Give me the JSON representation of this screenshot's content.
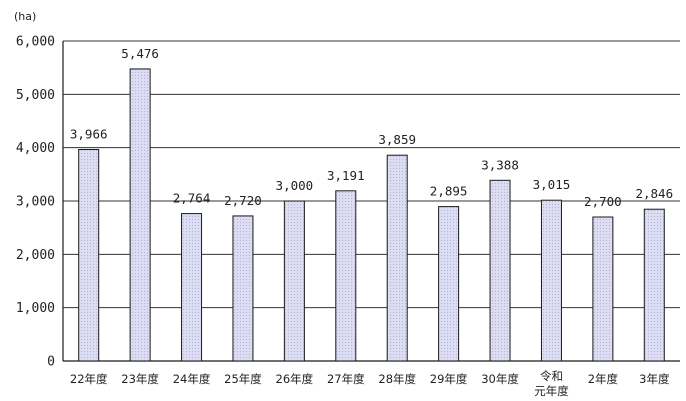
{
  "chart_data": {
    "type": "bar",
    "unit": "(ha)",
    "categories": [
      [
        "22年度"
      ],
      [
        "23年度"
      ],
      [
        "24年度"
      ],
      [
        "25年度"
      ],
      [
        "26年度"
      ],
      [
        "27年度"
      ],
      [
        "28年度"
      ],
      [
        "29年度"
      ],
      [
        "30年度"
      ],
      [
        "令和",
        "元年度"
      ],
      [
        "2年度"
      ],
      [
        "3年度"
      ]
    ],
    "values": [
      3966,
      5476,
      2764,
      2720,
      3000,
      3191,
      3859,
      2895,
      3388,
      3015,
      2700,
      2846
    ],
    "value_labels": [
      "3,966",
      "5,476",
      "2,764",
      "2,720",
      "3,000",
      "3,191",
      "3,859",
      "2,895",
      "3,388",
      "3,015",
      "2,700",
      "2,846"
    ],
    "ylim": [
      0,
      6000
    ],
    "yticks": [
      0,
      1000,
      2000,
      3000,
      4000,
      5000,
      6000
    ],
    "ytick_labels": [
      "0",
      "1,000",
      "2,000",
      "3,000",
      "4,000",
      "5,000",
      "6,000"
    ],
    "grid": true,
    "legend": "none",
    "colors": {
      "bar_fill": "#dcdcf2",
      "bar_stroke": "#1a1a1a",
      "grid": "#333333",
      "axis": "#1a1a1a"
    }
  }
}
